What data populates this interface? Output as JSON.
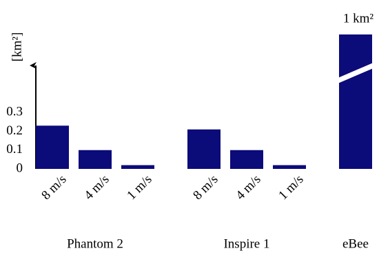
{
  "chart_data": {
    "type": "bar",
    "ylabel": "[km²]",
    "ylim": [
      0,
      0.55
    ],
    "yticks": [
      0,
      0.1,
      0.2,
      0.3
    ],
    "axis_break": true,
    "color": "#0b0b7a",
    "groups": [
      {
        "name": "Phantom 2",
        "categories": [
          "8 m/s",
          "4 m/s",
          "1 m/s"
        ],
        "values": [
          0.23,
          0.1,
          0.02
        ]
      },
      {
        "name": "Inspire 1",
        "categories": [
          "8 m/s",
          "4 m/s",
          "1 m/s"
        ],
        "values": [
          0.21,
          0.1,
          0.02
        ]
      },
      {
        "name": "eBee",
        "categories": [
          null
        ],
        "values": [
          1
        ],
        "value_labels": [
          "1 km²"
        ]
      }
    ]
  }
}
